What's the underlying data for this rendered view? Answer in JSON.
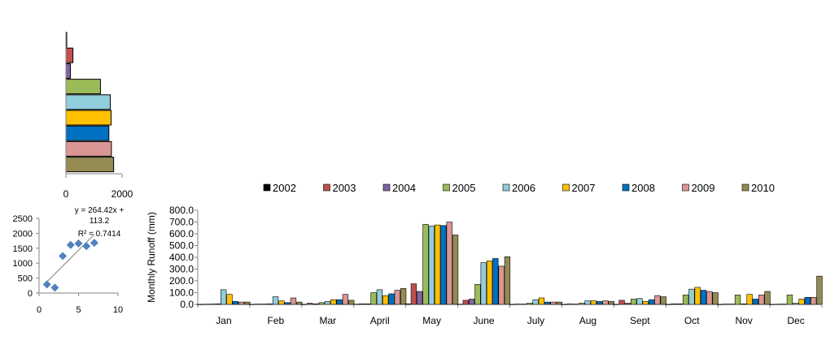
{
  "colors": {
    "2002": "#000000",
    "2003": "#c0504d",
    "2004": "#8064a2",
    "2005": "#9bbb59",
    "2006": "#92cddc",
    "2007": "#ffc000",
    "2008": "#0070c0",
    "2009": "#d99694",
    "2010": "#948a54",
    "scatter": "#4f81bd",
    "axis": "#868686",
    "trend": "#808080"
  },
  "chart_data": [
    {
      "type": "bar",
      "orientation": "horizontal",
      "categories": [
        "2002",
        "2003",
        "2004",
        "2005",
        "2006",
        "2007",
        "2008",
        "2009",
        "2010"
      ],
      "values": [
        15,
        250,
        160,
        1230,
        1580,
        1610,
        1530,
        1620,
        1700
      ],
      "xlim": [
        0,
        2000
      ],
      "xticks": [
        "0",
        "2000"
      ],
      "grid": false
    },
    {
      "type": "scatter",
      "x": [
        1,
        2,
        3,
        4,
        5,
        6,
        7
      ],
      "y": [
        290,
        180,
        1240,
        1610,
        1660,
        1570,
        1680
      ],
      "xlim": [
        0,
        10
      ],
      "ylim": [
        0,
        2500
      ],
      "xticks": [
        "0",
        "5",
        "10"
      ],
      "yticks": [
        "0",
        "500",
        "1000",
        "1500",
        "2000",
        "2500"
      ],
      "trendline": {
        "slope": 264.42,
        "intercept": 113.2,
        "x_range": [
          1,
          7
        ]
      },
      "annotations": [
        "y = 264.42x +",
        "113.2",
        "R² = 0.7414"
      ],
      "grid": false
    },
    {
      "type": "bar",
      "orientation": "vertical",
      "ylabel": "Monthly  Runoff (mm)",
      "ylim": [
        0,
        800
      ],
      "yticks": [
        "0.0",
        "100.0",
        "200.0",
        "300.0",
        "400.0",
        "500.0",
        "600.0",
        "700.0",
        "800.0"
      ],
      "legend_position": "top",
      "grid": false,
      "categories": [
        "Jan",
        "Feb",
        "Mar",
        "April",
        "May",
        "June",
        "July",
        "Aug",
        "Sept",
        "Oct",
        "Nov",
        "Dec"
      ],
      "series": [
        {
          "name": "2002",
          "values": [
            1,
            1,
            1,
            2,
            5,
            2,
            1,
            1,
            1,
            1,
            1,
            1
          ]
        },
        {
          "name": "2003",
          "values": [
            2,
            3,
            10,
            5,
            175,
            35,
            3,
            4,
            35,
            5,
            3,
            2
          ]
        },
        {
          "name": "2004",
          "values": [
            3,
            3,
            5,
            5,
            110,
            45,
            3,
            3,
            10,
            5,
            3,
            3
          ]
        },
        {
          "name": "2005",
          "values": [
            5,
            5,
            15,
            100,
            680,
            170,
            10,
            10,
            45,
            80,
            80,
            80
          ]
        },
        {
          "name": "2006",
          "values": [
            125,
            65,
            25,
            125,
            665,
            355,
            40,
            30,
            50,
            130,
            5,
            10
          ]
        },
        {
          "name": "2007",
          "values": [
            85,
            30,
            40,
            75,
            675,
            370,
            55,
            30,
            25,
            145,
            85,
            45
          ]
        },
        {
          "name": "2008",
          "values": [
            25,
            15,
            40,
            90,
            670,
            390,
            20,
            25,
            40,
            120,
            45,
            60
          ]
        },
        {
          "name": "2009",
          "values": [
            20,
            55,
            85,
            120,
            700,
            325,
            20,
            30,
            75,
            110,
            80,
            60
          ]
        },
        {
          "name": "2010",
          "values": [
            20,
            20,
            35,
            135,
            590,
            405,
            20,
            25,
            65,
            100,
            110,
            240
          ]
        }
      ]
    }
  ]
}
